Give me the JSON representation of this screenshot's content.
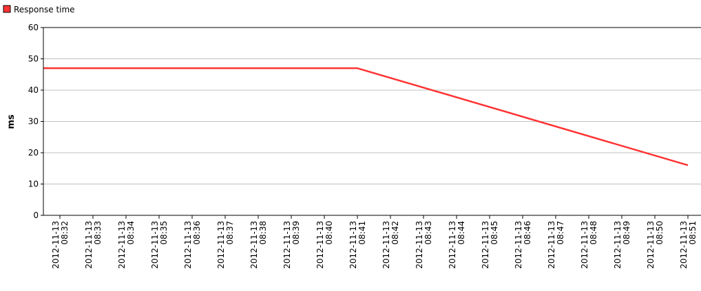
{
  "chart_data": {
    "type": "line",
    "title": "",
    "xlabel": "",
    "ylabel": "ms",
    "ylim": [
      0,
      60
    ],
    "yticks": [
      0,
      10,
      20,
      30,
      40,
      50,
      60
    ],
    "grid": true,
    "legend_position": "top-left",
    "categories": [
      "2012-11-13 08:32",
      "2012-11-13 08:33",
      "2012-11-13 08:34",
      "2012-11-13 08:35",
      "2012-11-13 08:36",
      "2012-11-13 08:37",
      "2012-11-13 08:38",
      "2012-11-13 08:39",
      "2012-11-13 08:40",
      "2012-11-13 08:41",
      "2012-11-13 08:42",
      "2012-11-13 08:43",
      "2012-11-13 08:44",
      "2012-11-13 08:45",
      "2012-11-13 08:46",
      "2012-11-13 08:47",
      "2012-11-13 08:48",
      "2012-11-13 08:49",
      "2012-11-13 08:50",
      "2012-11-13 08:51"
    ],
    "series": [
      {
        "name": "Response time",
        "color": "#ff3333",
        "x": [
          "2012-11-13 08:32",
          "2012-11-13 08:41",
          "2012-11-13 08:51"
        ],
        "values": [
          47,
          47,
          16
        ]
      }
    ]
  }
}
